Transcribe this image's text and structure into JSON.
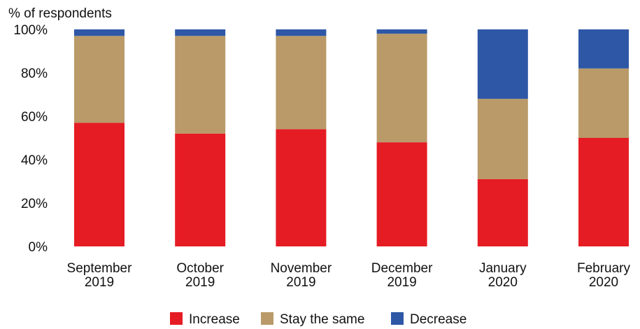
{
  "chart_data": {
    "type": "bar",
    "stacked": true,
    "ylabel": "% of respondents",
    "ylim": [
      0,
      100
    ],
    "yticks": [
      0,
      20,
      40,
      60,
      80,
      100
    ],
    "ytick_suffix": "%",
    "categories": [
      [
        "September",
        "2019"
      ],
      [
        "October",
        "2019"
      ],
      [
        "November",
        "2019"
      ],
      [
        "December",
        "2019"
      ],
      [
        "January",
        "2020"
      ],
      [
        "February",
        "2020"
      ]
    ],
    "series": [
      {
        "name": "Increase",
        "color": "#e51c24",
        "values": [
          57,
          52,
          54,
          48,
          31,
          50
        ]
      },
      {
        "name": "Stay the same",
        "color": "#b99a68",
        "values": [
          40,
          45,
          43,
          50,
          37,
          32
        ]
      },
      {
        "name": "Decrease",
        "color": "#2e57a6",
        "values": [
          3,
          3,
          3,
          2,
          32,
          18
        ]
      }
    ],
    "legend_position": "bottom"
  }
}
